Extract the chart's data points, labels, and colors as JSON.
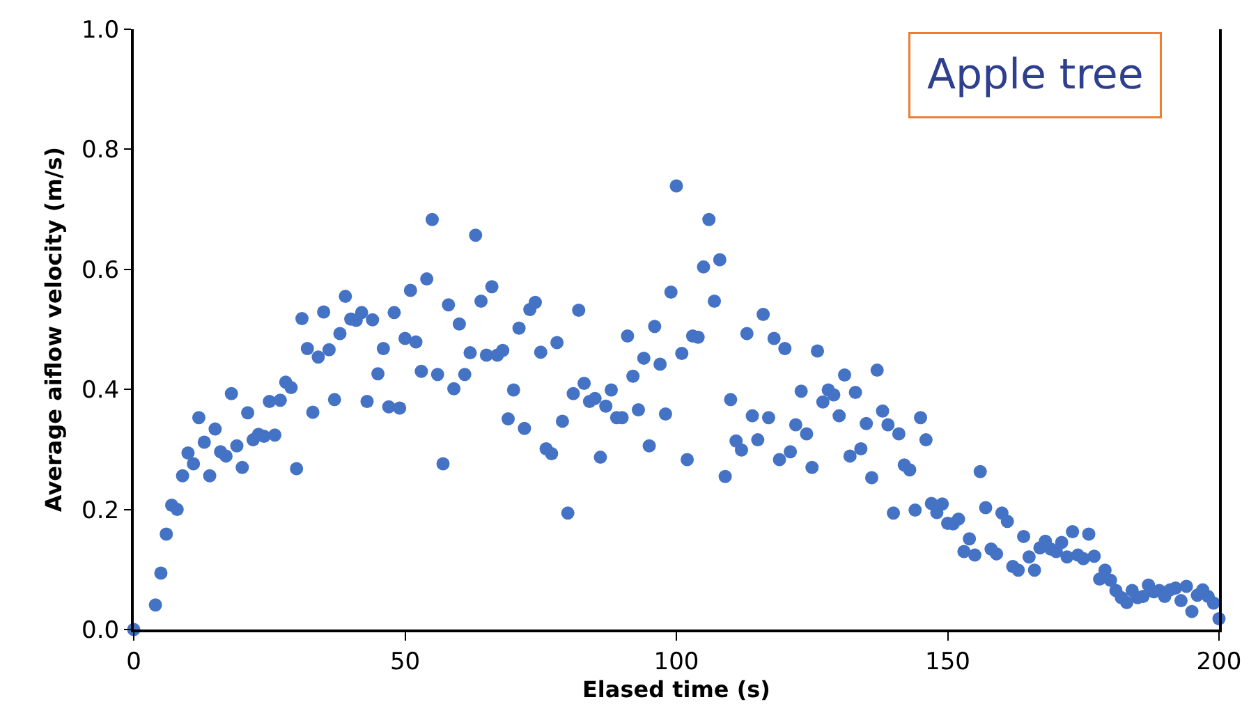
{
  "chart_data": {
    "type": "scatter",
    "xlabel": "Elased time (s)",
    "ylabel": "Average aiflow velocity (m/s)",
    "annotations": [
      "Apple tree"
    ],
    "x": [
      0,
      4,
      5,
      6,
      7,
      8,
      9,
      10,
      11,
      12,
      13,
      14,
      15,
      16,
      17,
      18,
      19,
      20,
      21,
      22,
      23,
      24,
      25,
      26,
      27,
      28,
      29,
      30,
      31,
      32,
      33,
      34,
      35,
      36,
      37,
      38,
      39,
      40,
      41,
      42,
      43,
      44,
      45,
      46,
      47,
      48,
      49,
      50,
      51,
      52,
      53,
      54,
      55,
      56,
      57,
      58,
      59,
      60,
      61,
      62,
      63,
      64,
      65,
      66,
      67,
      68,
      69,
      70,
      71,
      72,
      73,
      74,
      75,
      76,
      77,
      78,
      79,
      80,
      81,
      82,
      83,
      84,
      85,
      86,
      87,
      88,
      89,
      90,
      91,
      92,
      93,
      94,
      95,
      96,
      97,
      98,
      99,
      100,
      101,
      102,
      103,
      104,
      105,
      106,
      107,
      108,
      109,
      110,
      111,
      112,
      113,
      114,
      115,
      116,
      117,
      118,
      119,
      120,
      121,
      122,
      123,
      124,
      125,
      126,
      127,
      128,
      129,
      130,
      131,
      132,
      133,
      134,
      135,
      136,
      137,
      138,
      139,
      140,
      141,
      142,
      143,
      144,
      145,
      146,
      147,
      148,
      149,
      150,
      151,
      152,
      153,
      154,
      155,
      156,
      157,
      158,
      159,
      160,
      161,
      162,
      163,
      164,
      165,
      166,
      167,
      168,
      169,
      170,
      171,
      172,
      173,
      174,
      175,
      176,
      177,
      178,
      179,
      180,
      181,
      182,
      183,
      184,
      185,
      186,
      187,
      188,
      189,
      190,
      191,
      192,
      193,
      194,
      195,
      196,
      197,
      198,
      199,
      200
    ],
    "series": [
      {
        "color": "#4472c4",
        "values": [
          0,
          0.041,
          0.094,
          0.159,
          0.207,
          0.2,
          0.256,
          0.294,
          0.276,
          0.353,
          0.312,
          0.256,
          0.334,
          0.296,
          0.289,
          0.393,
          0.306,
          0.27,
          0.361,
          0.316,
          0.325,
          0.322,
          0.38,
          0.324,
          0.382,
          0.412,
          0.403,
          0.268,
          0.518,
          0.468,
          0.362,
          0.454,
          0.529,
          0.466,
          0.383,
          0.493,
          0.555,
          0.517,
          0.515,
          0.528,
          0.38,
          0.516,
          0.426,
          0.468,
          0.371,
          0.528,
          0.369,
          0.485,
          0.565,
          0.479,
          0.43,
          0.584,
          0.683,
          0.425,
          0.276,
          0.541,
          0.401,
          0.509,
          0.425,
          0.461,
          0.657,
          0.547,
          0.457,
          0.571,
          0.457,
          0.465,
          0.351,
          0.399,
          0.502,
          0.335,
          0.533,
          0.545,
          0.462,
          0.301,
          0.293,
          0.478,
          0.347,
          0.194,
          0.393,
          0.532,
          0.41,
          0.38,
          0.385,
          0.287,
          0.372,
          0.399,
          0.353,
          0.353,
          0.489,
          0.422,
          0.366,
          0.452,
          0.306,
          0.505,
          0.442,
          0.359,
          0.562,
          0.739,
          0.46,
          0.283,
          0.489,
          0.487,
          0.604,
          0.683,
          0.547,
          0.616,
          0.255,
          0.383,
          0.314,
          0.299,
          0.493,
          0.356,
          0.316,
          0.525,
          0.353,
          0.485,
          0.283,
          0.468,
          0.296,
          0.341,
          0.397,
          0.326,
          0.27,
          0.464,
          0.379,
          0.399,
          0.391,
          0.356,
          0.424,
          0.289,
          0.395,
          0.301,
          0.343,
          0.253,
          0.432,
          0.364,
          0.341,
          0.194,
          0.326,
          0.274,
          0.266,
          0.199,
          0.353,
          0.316,
          0.21,
          0.195,
          0.209,
          0.177,
          0.176,
          0.184,
          0.13,
          0.151,
          0.124,
          0.263,
          0.203,
          0.134,
          0.126,
          0.194,
          0.18,
          0.105,
          0.099,
          0.155,
          0.121,
          0.099,
          0.136,
          0.147,
          0.134,
          0.13,
          0.145,
          0.121,
          0.163,
          0.124,
          0.118,
          0.159,
          0.122,
          0.084,
          0.099,
          0.082,
          0.065,
          0.053,
          0.045,
          0.065,
          0.053,
          0.055,
          0.074,
          0.063,
          0.065,
          0.055,
          0.066,
          0.069,
          0.048,
          0.072,
          0.03,
          0.057,
          0.066,
          0.055,
          0.044,
          0.018
        ]
      }
    ],
    "xlim": [
      0,
      200
    ],
    "xticks": [
      0,
      50,
      100,
      150,
      200
    ],
    "ylim": [
      0,
      1
    ],
    "yticks": [
      {
        "value": 0,
        "label": "0.0"
      },
      {
        "value": 0.2,
        "label": "0.2"
      },
      {
        "value": 0.4,
        "label": "0.4"
      },
      {
        "value": 0.6,
        "label": "0.6"
      },
      {
        "value": 0.8,
        "label": "0.8"
      },
      {
        "value": 1,
        "label": "1.0"
      }
    ],
    "marker": "circle",
    "grid": false
  }
}
